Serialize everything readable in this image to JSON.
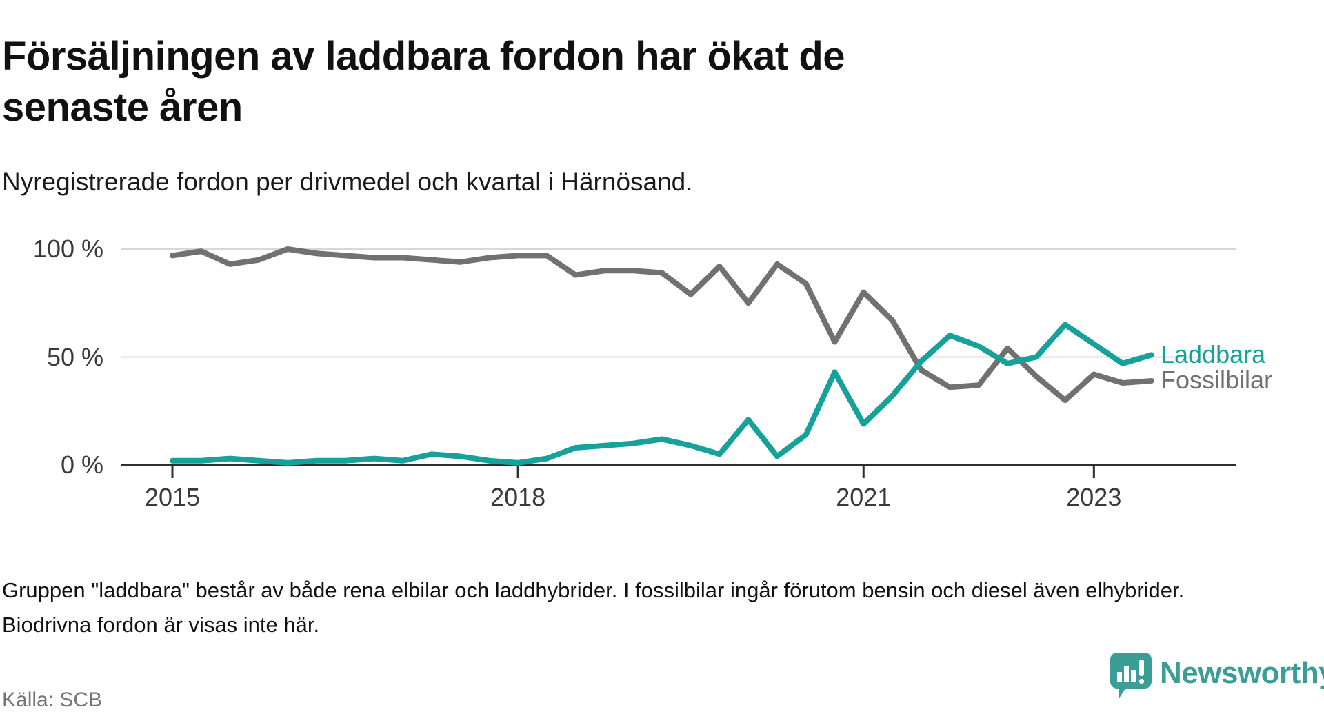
{
  "header": {
    "title": "Försäljningen av laddbara fordon har ökat de senaste åren",
    "subtitle": "Nyregistrerade fordon per drivmedel och kvartal i Härnösand."
  },
  "chart_data": {
    "type": "line",
    "unit": "%",
    "title": "Försäljningen av laddbara fordon har ökat de senaste åren",
    "xlabel": "",
    "ylabel": "",
    "ylim": [
      0,
      100
    ],
    "grid": "horizontal",
    "legend_position": "right-of-line-end",
    "x": [
      "2015 Q1",
      "2015 Q2",
      "2015 Q3",
      "2015 Q4",
      "2016 Q1",
      "2016 Q2",
      "2016 Q3",
      "2016 Q4",
      "2017 Q1",
      "2017 Q2",
      "2017 Q3",
      "2017 Q4",
      "2018 Q1",
      "2018 Q2",
      "2018 Q3",
      "2018 Q4",
      "2019 Q1",
      "2019 Q2",
      "2019 Q3",
      "2019 Q4",
      "2020 Q1",
      "2020 Q2",
      "2020 Q3",
      "2020 Q4",
      "2021 Q1",
      "2021 Q2",
      "2021 Q3",
      "2021 Q4",
      "2022 Q1",
      "2022 Q2",
      "2022 Q3",
      "2022 Q4",
      "2023 Q1",
      "2023 Q2",
      "2023 Q3"
    ],
    "series": [
      {
        "name": "Laddbara",
        "color": "#16a29a",
        "values": [
          2,
          2,
          3,
          2,
          1,
          2,
          2,
          3,
          2,
          5,
          4,
          2,
          1,
          3,
          8,
          9,
          10,
          12,
          9,
          5,
          21,
          4,
          14,
          43,
          19,
          32,
          48,
          60,
          55,
          47,
          50,
          65,
          56,
          47,
          51
        ]
      },
      {
        "name": "Fossilbilar",
        "color": "#717171",
        "values": [
          97,
          99,
          93,
          95,
          100,
          98,
          97,
          96,
          96,
          95,
          94,
          96,
          97,
          97,
          88,
          90,
          90,
          89,
          79,
          92,
          75,
          93,
          84,
          57,
          80,
          67,
          44,
          36,
          37,
          54,
          41,
          30,
          42,
          38,
          39
        ]
      }
    ],
    "yticks": [
      {
        "value": 100,
        "label": "100 %"
      },
      {
        "value": 50,
        "label": "50 %"
      },
      {
        "value": 0,
        "label": "0 %"
      }
    ],
    "xticks": [
      {
        "index": 0,
        "label": "2015"
      },
      {
        "index": 12,
        "label": "2018"
      },
      {
        "index": 24,
        "label": "2021"
      },
      {
        "index": 32,
        "label": "2023"
      }
    ],
    "colors": {
      "gridline": "#d8d8d8",
      "axis": "#2e2e2e"
    }
  },
  "footnote": {
    "text": "Gruppen \"laddbara\" består av både rena elbilar och laddhybrider. I fossilbilar ingår förutom bensin och diesel även elhybrider. Biodrivna fordon är visas inte här."
  },
  "source": {
    "label": "Källa: SCB"
  },
  "branding": {
    "name": "Newsworthy",
    "color": "#3a9d96",
    "icon": "speech-bubble-bar-chart-exclamation"
  }
}
